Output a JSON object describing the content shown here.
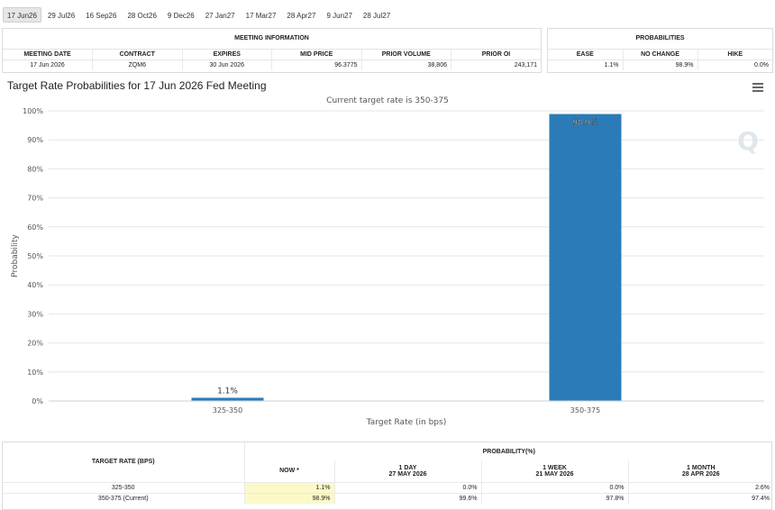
{
  "tabs": [
    "17 Jun26",
    "29 Jul26",
    "16 Sep26",
    "28 Oct26",
    "9 Dec26",
    "27 Jan27",
    "17 Mar27",
    "28 Apr27",
    "9 Jun27",
    "28 Jul27"
  ],
  "meeting_info": {
    "header": "MEETING INFORMATION",
    "columns": [
      "MEETING DATE",
      "CONTRACT",
      "EXPIRES",
      "MID PRICE",
      "PRIOR VOLUME",
      "PRIOR OI"
    ],
    "row": [
      "17 Jun 2026",
      "ZQM6",
      "30 Jun 2026",
      "96.3775",
      "38,806",
      "243,171"
    ]
  },
  "probabilities": {
    "header": "PROBABILITIES",
    "columns": [
      "EASE",
      "NO CHANGE",
      "HIKE"
    ],
    "row": [
      "1.1%",
      "98.9%",
      "0.0%"
    ]
  },
  "chart_data": {
    "type": "bar",
    "title": "Target Rate Probabilities for 17 Jun 2026 Fed Meeting",
    "subtitle": "Current target rate is 350-375",
    "xlabel": "Target Rate (in bps)",
    "ylabel": "Probability",
    "categories": [
      "325-350",
      "350-375"
    ],
    "values": [
      1.1,
      98.9
    ],
    "data_labels": [
      "1.1%",
      "98.9%"
    ],
    "ylim": [
      0,
      100
    ],
    "yticks": [
      "0%",
      "10%",
      "20%",
      "30%",
      "40%",
      "50%",
      "60%",
      "70%",
      "80%",
      "90%",
      "100%"
    ],
    "bar_color": "#2b7bb9",
    "grid": true,
    "legend": "none",
    "watermark": "Q"
  },
  "prob_table": {
    "header": "PROBABILITY(%)",
    "rate_header": "TARGET RATE (BPS)",
    "now_header": "NOW *",
    "periods": [
      {
        "label": "1 DAY",
        "date": "27 MAY 2026"
      },
      {
        "label": "1 WEEK",
        "date": "21 MAY 2026"
      },
      {
        "label": "1 MONTH",
        "date": "28 APR 2026"
      }
    ],
    "rows": [
      {
        "rate": "325-350",
        "now": "1.1%",
        "values": [
          "0.0%",
          "0.0%",
          "2.6%"
        ]
      },
      {
        "rate": "350-375 (Current)",
        "now": "98.9%",
        "values": [
          "99.6%",
          "97.8%",
          "97.4%"
        ]
      }
    ]
  }
}
